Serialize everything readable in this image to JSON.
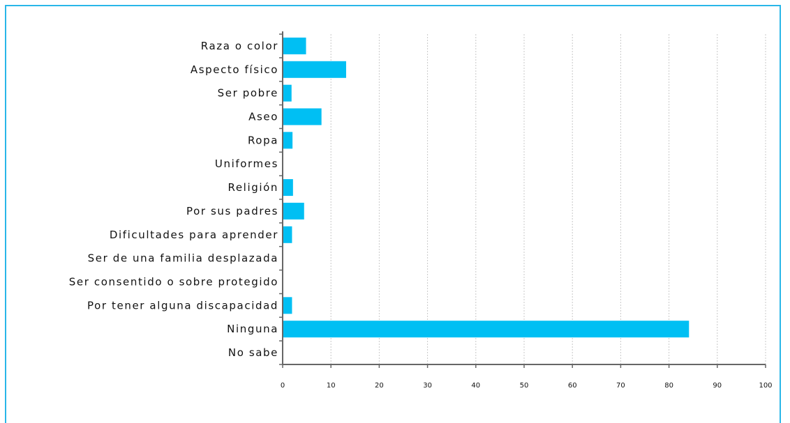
{
  "chart_data": {
    "type": "bar",
    "orientation": "horizontal",
    "title": "",
    "xlabel": "",
    "ylabel": "",
    "categories": [
      "Raza o color",
      "Aspecto físico",
      "Ser pobre",
      "Aseo",
      "Ropa",
      "Uniformes",
      "Religión",
      "Por sus padres",
      "Dificultades para aprender",
      "Ser de una familia desplazada",
      "Ser consentido o sobre protegido",
      "Por tener alguna discapacidad",
      "Ninguna",
      "No sabe"
    ],
    "values": [
      4.7,
      13.0,
      1.7,
      7.9,
      1.9,
      0,
      2.0,
      4.3,
      1.8,
      0,
      0,
      1.8,
      84.0,
      0
    ],
    "xlim": [
      0,
      100
    ],
    "xticks": [
      0,
      10,
      20,
      30,
      40,
      50,
      60,
      70,
      80,
      90,
      100
    ],
    "grid": "vertical-dashed",
    "legend": "none",
    "colors": {
      "bar": "#00bff3",
      "axis": "#666666",
      "grid": "#c8c8c8",
      "frame": "#29b6e8"
    }
  }
}
